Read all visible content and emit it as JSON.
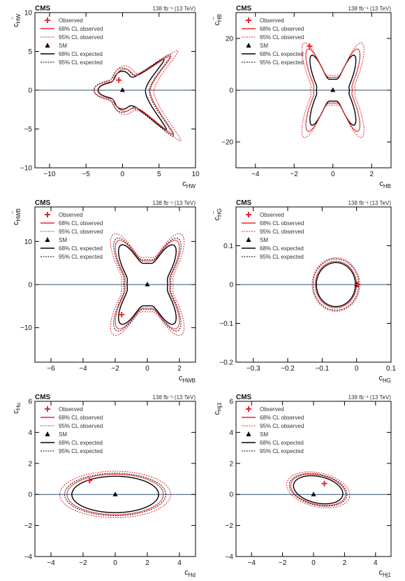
{
  "figure": {
    "experiment": "CMS",
    "lumi_label": "138 fb⁻¹ (13 TeV)",
    "legend": {
      "observed": "Observed",
      "obs68": "68% CL observed",
      "obs95": "95% CL observed",
      "sm": "SM",
      "exp68": "68% CL expected",
      "exp95": "95% CL expected"
    }
  },
  "colors": {
    "observed": "#e8262a",
    "expected": "#000000",
    "frame": "#000000",
    "zero_line": "#2f4f6f"
  },
  "chart_data": [
    {
      "type": "scatter",
      "xlabel": "c_HW",
      "ylabel": "c_HW~",
      "xlim": [
        -12,
        10
      ],
      "ylim": [
        -10,
        10
      ],
      "xticks": [
        -10,
        -5,
        0,
        5,
        10
      ],
      "yticks": [
        -10,
        -5,
        0,
        5,
        10
      ],
      "observed": [
        -0.5,
        1.3
      ],
      "sm": [
        0,
        0
      ],
      "shape": "fish",
      "contours": {
        "obs68": 1.0,
        "obs95": 1.15,
        "exp68": 0.9,
        "exp95": 1.05
      }
    },
    {
      "type": "scatter",
      "xlabel": "c_HB",
      "ylabel": "c_HB~",
      "xlim": [
        -5,
        3
      ],
      "ylim": [
        -30,
        30
      ],
      "xticks": [
        -4,
        -2,
        0,
        2
      ],
      "yticks": [
        -20,
        0,
        20
      ],
      "observed": [
        -1.2,
        17
      ],
      "sm": [
        0,
        0
      ],
      "shape": "xstar",
      "contours": {
        "obs68": 1.0,
        "obs95": 1.15,
        "exp68": 0.85,
        "exp95": 1.0
      }
    },
    {
      "type": "scatter",
      "xlabel": "c_HWB",
      "ylabel": "c_HWB~",
      "xlim": [
        -7,
        3
      ],
      "ylim": [
        -18,
        18
      ],
      "xticks": [
        -6,
        -4,
        -2,
        0,
        2
      ],
      "yticks": [
        -10,
        0,
        10
      ],
      "observed": [
        -1.6,
        -7
      ],
      "sm": [
        0,
        0
      ],
      "shape": "astroid",
      "contours": {
        "obs68": 1.0,
        "obs95": 1.15,
        "exp68": 0.9,
        "exp95": 1.05
      }
    },
    {
      "type": "scatter",
      "xlabel": "c_HG",
      "ylabel": "c_HG~",
      "xlim": [
        -0.35,
        0.1
      ],
      "ylim": [
        -0.2,
        0.2
      ],
      "xticks": [
        -0.3,
        -0.2,
        -0.1,
        0,
        0.1
      ],
      "yticks": [
        -0.2,
        -0.1,
        0,
        0.1
      ],
      "observed": [
        0.003,
        0.0
      ],
      "sm": [
        0,
        0
      ],
      "shape": "rings",
      "contours": {
        "obs68": 1.0,
        "obs95": 1.15,
        "exp68": 0.9,
        "exp95": 1.05
      }
    },
    {
      "type": "scatter",
      "xlabel": "c_Hd",
      "ylabel": "c_Hu",
      "xlim": [
        -5,
        5
      ],
      "ylim": [
        -4,
        6
      ],
      "xticks": [
        -4,
        -2,
        0,
        2,
        4
      ],
      "yticks": [
        -4,
        -2,
        0,
        2,
        4,
        6
      ],
      "observed": [
        -1.6,
        0.9
      ],
      "sm": [
        0,
        0
      ],
      "shape": "ellipse",
      "contours": {
        "obs68": 1.0,
        "obs95": 1.15,
        "exp68": 0.9,
        "exp95": 1.05
      }
    },
    {
      "type": "scatter",
      "xlabel": "c_Hj1",
      "ylabel": "c_Hj3",
      "xlim": [
        -5,
        5
      ],
      "ylim": [
        -4,
        6
      ],
      "xticks": [
        -4,
        -2,
        0,
        2,
        4
      ],
      "yticks": [
        -4,
        -2,
        0,
        2,
        4,
        6
      ],
      "observed": [
        0.7,
        0.7
      ],
      "sm": [
        0,
        0
      ],
      "shape": "tilted",
      "contours": {
        "obs68": 1.0,
        "obs95": 1.15,
        "exp68": 0.9,
        "exp95": 1.05
      }
    }
  ]
}
